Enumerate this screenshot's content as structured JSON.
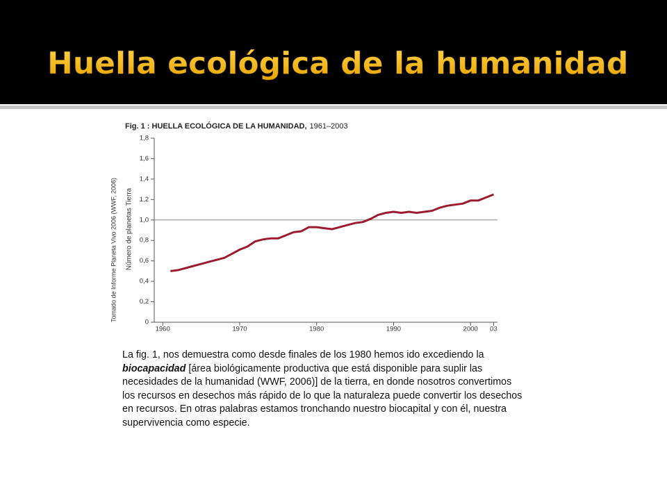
{
  "slide_title": "Huella ecológica de la humanidad",
  "source_note": "Tomado de Informe Planeta Vivo 2006 (WWF, 2006)",
  "chart_data": {
    "type": "line",
    "title": "Fig. 1 : HUELLA ECOLÓGICA DE LA HUMANIDAD,",
    "title_years": "1961–2003",
    "y_label": "Número de planetas Tierra",
    "x": [
      1961,
      1962,
      1963,
      1964,
      1965,
      1966,
      1967,
      1968,
      1969,
      1970,
      1971,
      1972,
      1973,
      1974,
      1975,
      1976,
      1977,
      1978,
      1979,
      1980,
      1981,
      1982,
      1983,
      1984,
      1985,
      1986,
      1987,
      1988,
      1989,
      1990,
      1991,
      1992,
      1993,
      1994,
      1995,
      1996,
      1997,
      1998,
      1999,
      2000,
      2001,
      2002,
      2003
    ],
    "series": [
      {
        "color": "#9b1b30",
        "values": [
          0.5,
          0.51,
          0.53,
          0.55,
          0.57,
          0.59,
          0.61,
          0.63,
          0.67,
          0.71,
          0.74,
          0.79,
          0.81,
          0.82,
          0.82,
          0.85,
          0.88,
          0.89,
          0.93,
          0.93,
          0.92,
          0.91,
          0.93,
          0.95,
          0.97,
          0.98,
          1.01,
          1.05,
          1.07,
          1.08,
          1.07,
          1.08,
          1.07,
          1.08,
          1.09,
          1.12,
          1.14,
          1.15,
          1.16,
          1.19,
          1.19,
          1.22,
          1.25
        ]
      }
    ],
    "xlim": [
      1958.9,
      2003.5
    ],
    "xticks": [
      1960,
      1970,
      1980,
      1990,
      2000,
      {
        "value": 2003,
        "label": "03"
      }
    ],
    "ylim": [
      0,
      1.8
    ],
    "yticks": [
      0,
      {
        "value": 0.2,
        "label": "0,2"
      },
      {
        "value": 0.4,
        "label": "0,4"
      },
      {
        "value": 0.6,
        "label": "0,6"
      },
      {
        "value": 0.8,
        "label": "0,8"
      },
      {
        "value": 1.0,
        "label": "1,0"
      },
      {
        "value": 1.2,
        "label": "1,2"
      },
      {
        "value": 1.4,
        "label": "1,4"
      },
      {
        "value": 1.6,
        "label": "1,6"
      },
      {
        "value": 1.8,
        "label": "1,8"
      }
    ],
    "reference_line": 1.0
  },
  "paragraph": {
    "before": "La fig. 1, nos demuestra como desde finales de los 1980 hemos ido excediendo la ",
    "emphasis": "biocapacidad",
    "after": " [área biológicamente productiva que está disponible para suplir las necesidades de la humanidad (WWF, 2006)] de la tierra, en donde nosotros convertimos los recursos en desechos más rápido de lo que la naturaleza puede convertir los desechos en recursos. En otras palabras estamos tronchando nuestro biocapital y con él, nuestra supervivencia como especie."
  }
}
